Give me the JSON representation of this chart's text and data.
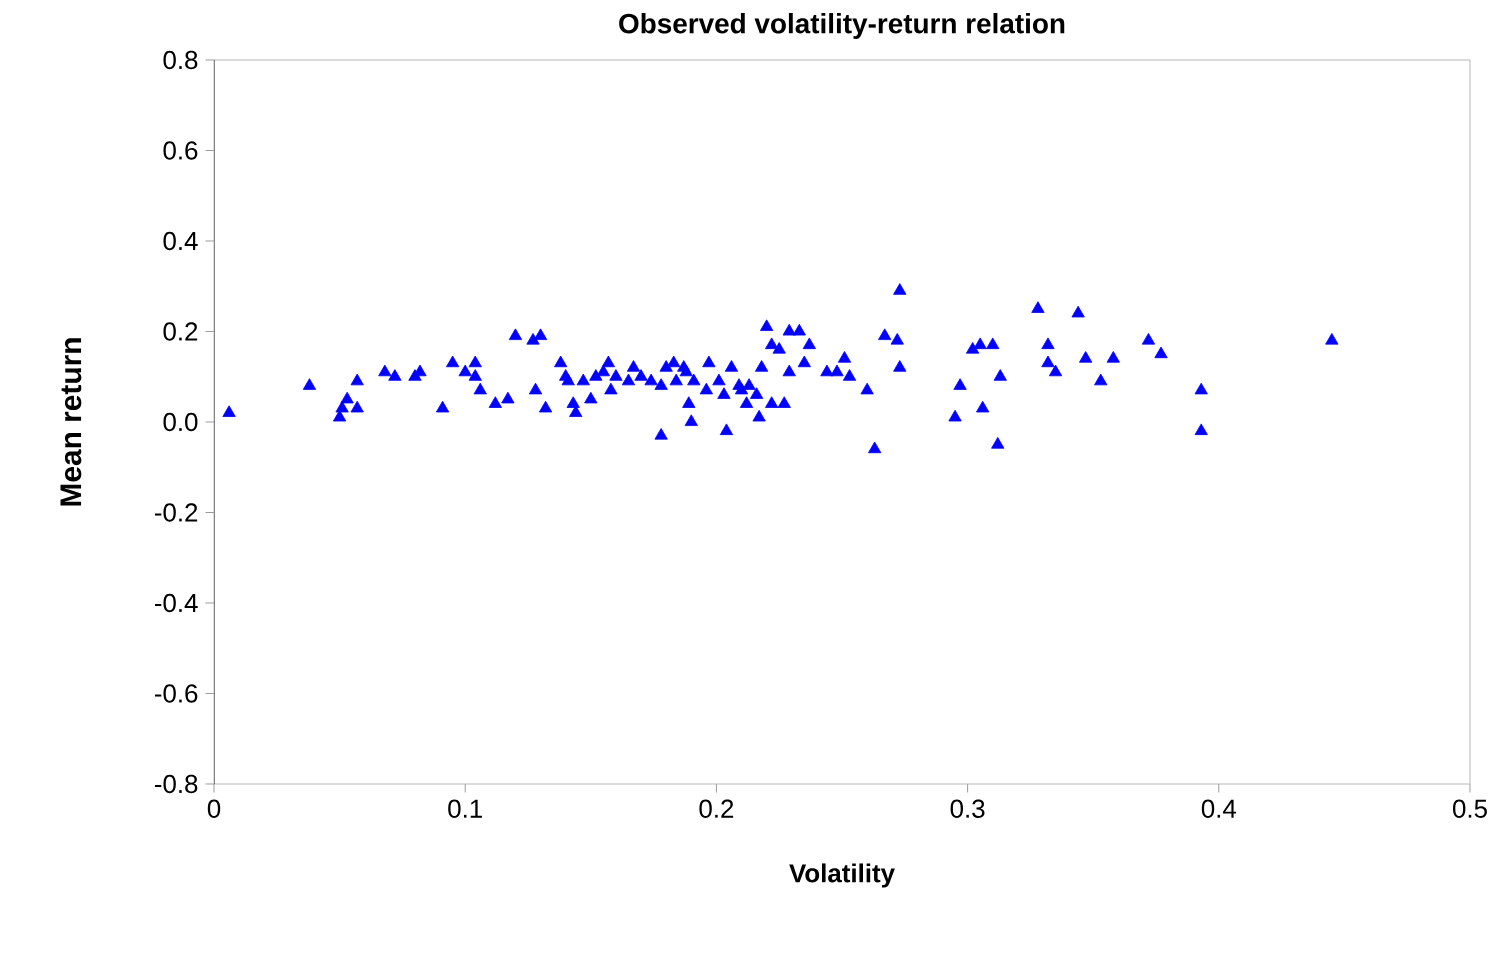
{
  "chart_data": {
    "type": "scatter",
    "title": "Observed volatility-return relation",
    "xlabel": "Volatility",
    "ylabel": "Mean return",
    "xlim": [
      0,
      0.5
    ],
    "xticks": [
      0,
      0.1,
      0.2,
      0.3,
      0.4,
      0.5
    ],
    "ylim": [
      -0.8,
      0.8
    ],
    "yticks": [
      -0.8,
      -0.6,
      -0.4,
      -0.2,
      {
        "value": 0,
        "label": "0.0"
      },
      0.2,
      0.4,
      0.6,
      0.8
    ],
    "marker": "triangle",
    "grid": false,
    "series": [
      {
        "color": "#0000ff",
        "x": [
          0.006,
          0.038,
          0.051,
          0.05,
          0.053,
          0.057,
          0.057,
          0.068,
          0.072,
          0.08,
          0.082,
          0.091,
          0.095,
          0.1,
          0.104,
          0.104,
          0.106,
          0.112,
          0.117,
          0.12,
          0.127,
          0.13,
          0.128,
          0.132,
          0.138,
          0.14,
          0.141,
          0.143,
          0.144,
          0.147,
          0.15,
          0.152,
          0.155,
          0.157,
          0.158,
          0.16,
          0.165,
          0.167,
          0.17,
          0.174,
          0.178,
          0.18,
          0.178,
          0.183,
          0.184,
          0.187,
          0.188,
          0.189,
          0.19,
          0.191,
          0.196,
          0.197,
          0.201,
          0.203,
          0.204,
          0.206,
          0.209,
          0.21,
          0.212,
          0.213,
          0.216,
          0.218,
          0.217,
          0.22,
          0.222,
          0.222,
          0.225,
          0.227,
          0.229,
          0.229,
          0.233,
          0.235,
          0.237,
          0.244,
          0.248,
          0.251,
          0.253,
          0.26,
          0.263,
          0.267,
          0.272,
          0.273,
          0.273,
          0.295,
          0.297,
          0.302,
          0.305,
          0.306,
          0.31,
          0.313,
          0.312,
          0.328,
          0.332,
          0.332,
          0.335,
          0.344,
          0.347,
          0.353,
          0.358,
          0.372,
          0.377,
          0.393,
          0.393,
          0.445
        ],
        "values": [
          0.02,
          0.08,
          0.03,
          0.01,
          0.05,
          0.09,
          0.03,
          0.11,
          0.1,
          0.1,
          0.11,
          0.03,
          0.13,
          0.11,
          0.13,
          0.1,
          0.07,
          0.04,
          0.05,
          0.19,
          0.18,
          0.19,
          0.07,
          0.03,
          0.13,
          0.1,
          0.09,
          0.04,
          0.02,
          0.09,
          0.05,
          0.1,
          0.11,
          0.13,
          0.07,
          0.1,
          0.09,
          0.12,
          0.1,
          0.09,
          -0.03,
          0.12,
          0.08,
          0.13,
          0.09,
          0.12,
          0.11,
          0.04,
          0.0,
          0.09,
          0.07,
          0.13,
          0.09,
          0.06,
          -0.02,
          0.12,
          0.08,
          0.07,
          0.04,
          0.08,
          0.06,
          0.12,
          0.01,
          0.21,
          0.17,
          0.04,
          0.16,
          0.04,
          0.11,
          0.2,
          0.2,
          0.13,
          0.17,
          0.11,
          0.11,
          0.14,
          0.1,
          0.07,
          -0.06,
          0.19,
          0.18,
          0.12,
          0.29,
          0.01,
          0.08,
          0.16,
          0.17,
          0.03,
          0.17,
          0.1,
          -0.05,
          0.25,
          0.17,
          0.13,
          0.11,
          0.24,
          0.14,
          0.09,
          0.14,
          0.18,
          0.15,
          0.07,
          -0.02,
          0.18
        ]
      }
    ]
  }
}
